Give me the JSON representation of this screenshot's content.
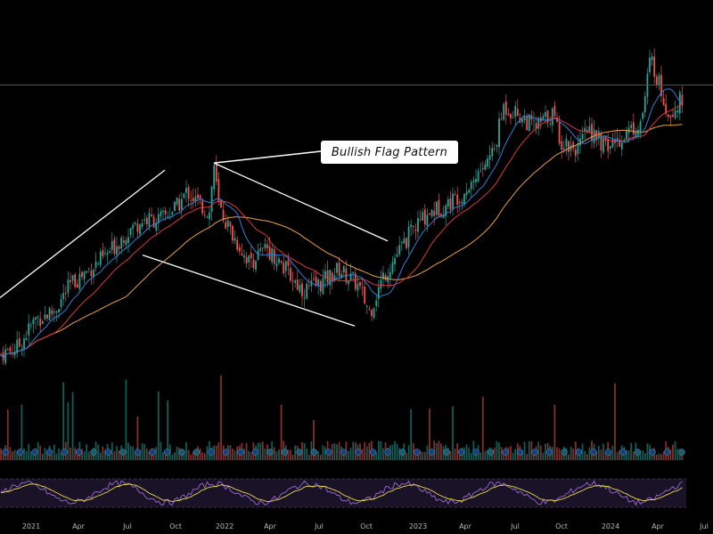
{
  "chart_data": {
    "type": "line",
    "title": "",
    "annotation": "Bullish Flag Pattern",
    "x_ticks": [
      "2021",
      "Apr",
      "Jul",
      "Oct",
      "2022",
      "Apr",
      "Jul",
      "Oct",
      "2023",
      "Apr",
      "Jul",
      "Oct",
      "2024",
      "Apr",
      "Jul"
    ],
    "horizontal_level_y": 112,
    "ylim": [
      70,
      124
    ],
    "colors": {
      "up": "#26a69a",
      "down": "#ef5350",
      "ma_fast": "#2f7fd6",
      "ma_mid": "#d63a3a",
      "ma_slow": "#e6a04a",
      "oscillator": "#9a6bd6",
      "signal": "#e8d84a",
      "level": "#2e6b2e",
      "pattern_lines": "#ffffff"
    },
    "price_path": [
      [
        0,
        74
      ],
      [
        20,
        75
      ],
      [
        40,
        79
      ],
      [
        60,
        80
      ],
      [
        80,
        84
      ],
      [
        100,
        86
      ],
      [
        120,
        88
      ],
      [
        140,
        91
      ],
      [
        160,
        93
      ],
      [
        180,
        93
      ],
      [
        200,
        95
      ],
      [
        210,
        97
      ],
      [
        225,
        95
      ],
      [
        235,
        94
      ],
      [
        240,
        101
      ],
      [
        245,
        95
      ],
      [
        260,
        91
      ],
      [
        280,
        87
      ],
      [
        300,
        89
      ],
      [
        320,
        86
      ],
      [
        340,
        83
      ],
      [
        360,
        84
      ],
      [
        380,
        86
      ],
      [
        400,
        84
      ],
      [
        415,
        80
      ],
      [
        430,
        85
      ],
      [
        445,
        88
      ],
      [
        460,
        91
      ],
      [
        480,
        94
      ],
      [
        500,
        95
      ],
      [
        520,
        97
      ],
      [
        540,
        100
      ],
      [
        555,
        103
      ],
      [
        565,
        109
      ],
      [
        580,
        108
      ],
      [
        600,
        106
      ],
      [
        620,
        108
      ],
      [
        630,
        104
      ],
      [
        650,
        103
      ],
      [
        660,
        106
      ],
      [
        680,
        103
      ],
      [
        700,
        105
      ],
      [
        720,
        107
      ],
      [
        730,
        116
      ],
      [
        740,
        112
      ],
      [
        750,
        108
      ],
      [
        765,
        110
      ]
    ],
    "pattern_lines": [
      {
        "from": [
          0,
          82
        ],
        "to": [
          185,
          100
        ]
      },
      {
        "from": [
          240,
          101
        ],
        "to": [
          435,
          90
        ]
      },
      {
        "from": [
          160,
          88
        ],
        "to": [
          398,
          78
        ]
      }
    ],
    "callout_anchor": [
      240,
      101
    ]
  }
}
